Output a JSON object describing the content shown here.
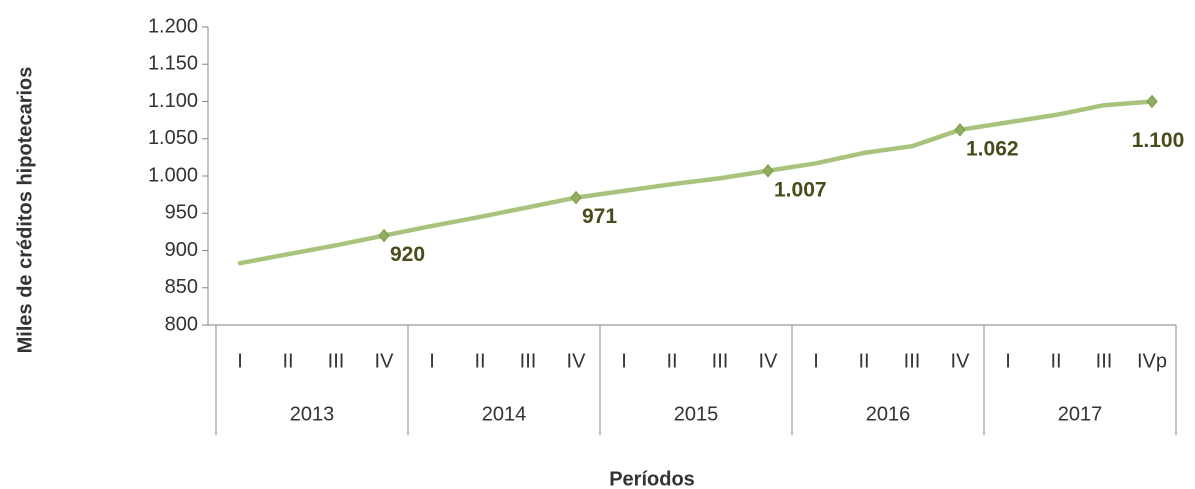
{
  "chart_data": {
    "type": "line",
    "y_axis_label": "Miles de créditos hipotecarios",
    "x_axis_label": "Períodos",
    "categories": [
      "I",
      "II",
      "III",
      "IV",
      "I",
      "II",
      "III",
      "IV",
      "I",
      "II",
      "III",
      "IV",
      "I",
      "II",
      "III",
      "IV",
      "I",
      "II",
      "III",
      "IVp"
    ],
    "years": [
      "2013",
      "2014",
      "2015",
      "2016",
      "2017"
    ],
    "series": [
      {
        "name": "Créditos hipotecarios",
        "color": "#a8c47c",
        "values": [
          883,
          895,
          907,
          920,
          933,
          945,
          958,
          971,
          980,
          989,
          997,
          1007,
          1017,
          1031,
          1040,
          1062,
          1072,
          1082,
          1095,
          1100
        ],
        "value_labels": [
          null,
          null,
          null,
          "920",
          null,
          null,
          null,
          "971",
          null,
          null,
          null,
          "1.007",
          null,
          null,
          null,
          "1.062",
          null,
          null,
          null,
          "1.100"
        ]
      }
    ],
    "ylim": [
      800,
      1200
    ],
    "yticks": [
      800,
      850,
      900,
      950,
      {
        "value": 1000,
        "label": "1.000"
      },
      {
        "value": 1050,
        "label": "1.050"
      },
      {
        "value": 1100,
        "label": "1.100"
      },
      {
        "value": 1150,
        "label": "1.150"
      },
      {
        "value": 1200,
        "label": "1.200"
      }
    ]
  }
}
